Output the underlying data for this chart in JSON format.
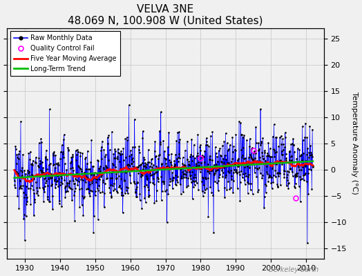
{
  "title": "VELVA 3NE",
  "subtitle": "48.069 N, 100.908 W (United States)",
  "ylabel": "Temperature Anomaly (°C)",
  "xlabel_note": "Berkeley Earth",
  "xlim": [
    1925,
    2015
  ],
  "ylim": [
    -17,
    27
  ],
  "yticks": [
    -15,
    -10,
    -5,
    0,
    5,
    10,
    15,
    20,
    25
  ],
  "xticks": [
    1930,
    1940,
    1950,
    1960,
    1970,
    1980,
    1990,
    2000,
    2010
  ],
  "start_year": 1927,
  "end_year": 2012,
  "raw_color": "#0000FF",
  "moving_avg_color": "#FF0000",
  "trend_color": "#00BB00",
  "qc_color": "#FF00FF",
  "bg_color": "#F0F0F0",
  "grid_color": "#C0C0C0",
  "seed": 12345
}
